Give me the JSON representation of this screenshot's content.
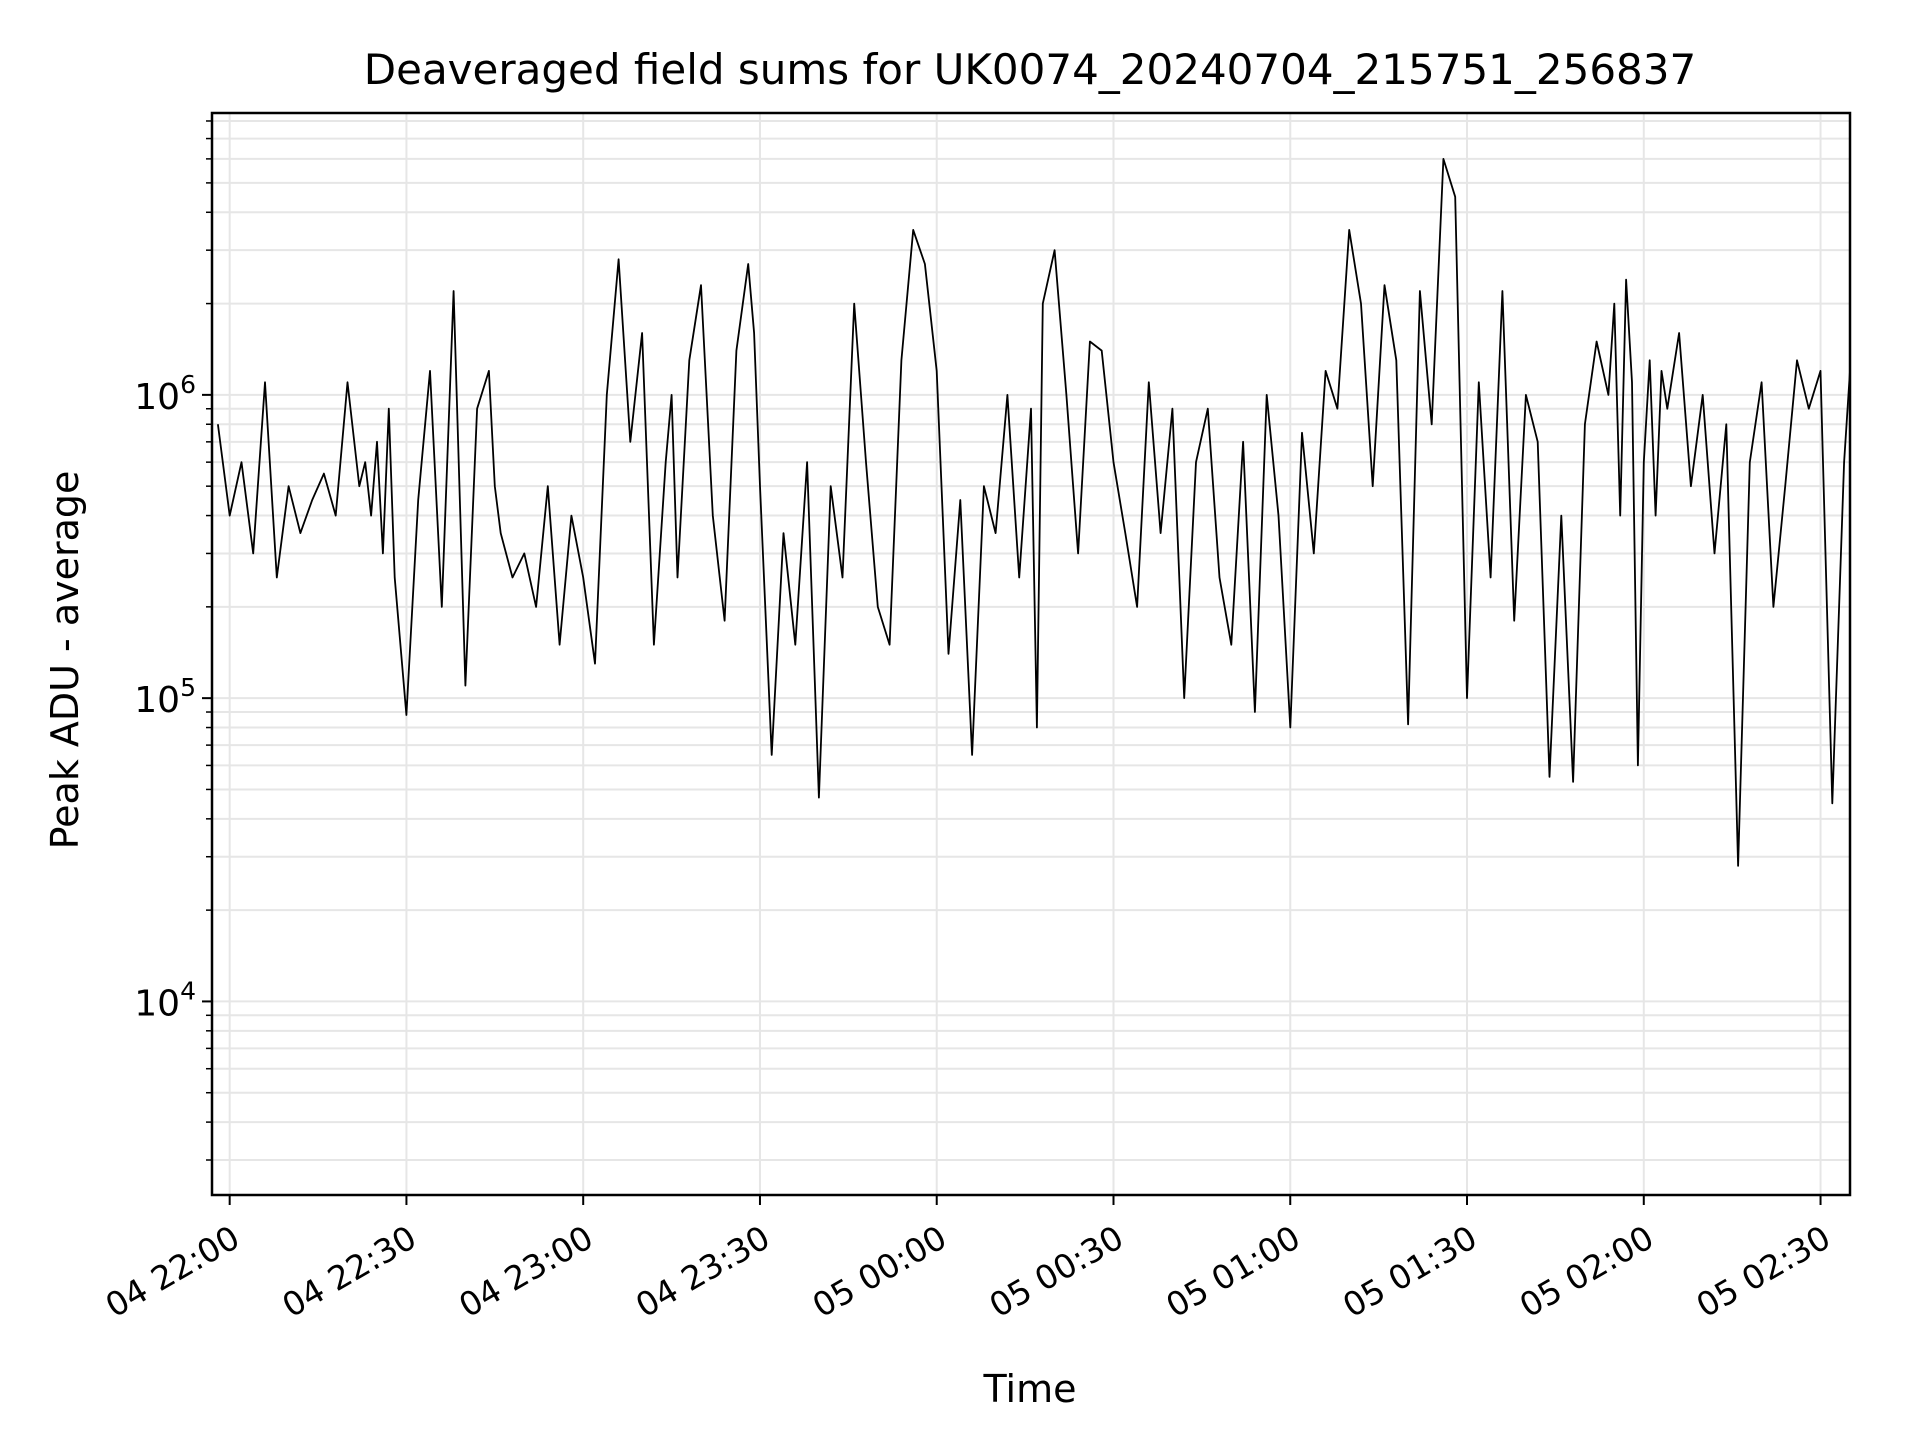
{
  "chart_data": {
    "type": "line",
    "title": "Deaveraged field sums for UK0074_20240704_215751_256837",
    "xlabel": "Time",
    "ylabel": "Peak ADU - average",
    "yscale": "log",
    "ylim": [
      2300,
      8500000
    ],
    "xlim": [
      "2024-07-04 21:57:00",
      "2024-07-05 02:35:00"
    ],
    "grid": true,
    "legend": "none",
    "line_color": "#000000",
    "grid_color": "#e6e6e6",
    "x_ticks": [
      {
        "time": "2024-07-04 22:00:00",
        "label": "04 22:00"
      },
      {
        "time": "2024-07-04 22:30:00",
        "label": "04 22:30"
      },
      {
        "time": "2024-07-04 23:00:00",
        "label": "04 23:00"
      },
      {
        "time": "2024-07-04 23:30:00",
        "label": "04 23:30"
      },
      {
        "time": "2024-07-05 00:00:00",
        "label": "05 00:00"
      },
      {
        "time": "2024-07-05 00:30:00",
        "label": "05 00:30"
      },
      {
        "time": "2024-07-05 01:00:00",
        "label": "05 01:00"
      },
      {
        "time": "2024-07-05 01:30:00",
        "label": "05 01:30"
      },
      {
        "time": "2024-07-05 02:00:00",
        "label": "05 02:00"
      },
      {
        "time": "2024-07-05 02:30:00",
        "label": "05 02:30"
      }
    ],
    "y_ticks": [
      {
        "value": 10000,
        "base": "10",
        "exp": "4"
      },
      {
        "value": 100000,
        "base": "10",
        "exp": "5"
      },
      {
        "value": 1000000,
        "base": "10",
        "exp": "6"
      }
    ],
    "series": [
      {
        "x": [
          "2024-07-04 21:58:00",
          "2024-07-04 22:00:00",
          "2024-07-04 22:02:00",
          "2024-07-04 22:04:00",
          "2024-07-04 22:06:00",
          "2024-07-04 22:08:00",
          "2024-07-04 22:10:00",
          "2024-07-04 22:12:00",
          "2024-07-04 22:14:00",
          "2024-07-04 22:16:00",
          "2024-07-04 22:18:00",
          "2024-07-04 22:20:00",
          "2024-07-04 22:22:00",
          "2024-07-04 22:23:00",
          "2024-07-04 22:24:00",
          "2024-07-04 22:25:00",
          "2024-07-04 22:26:00",
          "2024-07-04 22:27:00",
          "2024-07-04 22:28:00",
          "2024-07-04 22:30:00",
          "2024-07-04 22:32:00",
          "2024-07-04 22:34:00",
          "2024-07-04 22:36:00",
          "2024-07-04 22:38:00",
          "2024-07-04 22:40:00",
          "2024-07-04 22:42:00",
          "2024-07-04 22:44:00",
          "2024-07-04 22:45:00",
          "2024-07-04 22:46:00",
          "2024-07-04 22:48:00",
          "2024-07-04 22:50:00",
          "2024-07-04 22:52:00",
          "2024-07-04 22:54:00",
          "2024-07-04 22:56:00",
          "2024-07-04 22:58:00",
          "2024-07-04 23:00:00",
          "2024-07-04 23:02:00",
          "2024-07-04 23:04:00",
          "2024-07-04 23:06:00",
          "2024-07-04 23:08:00",
          "2024-07-04 23:10:00",
          "2024-07-04 23:12:00",
          "2024-07-04 23:14:00",
          "2024-07-04 23:15:00",
          "2024-07-04 23:16:00",
          "2024-07-04 23:18:00",
          "2024-07-04 23:20:00",
          "2024-07-04 23:22:00",
          "2024-07-04 23:24:00",
          "2024-07-04 23:26:00",
          "2024-07-04 23:28:00",
          "2024-07-04 23:29:00",
          "2024-07-04 23:30:00",
          "2024-07-04 23:32:00",
          "2024-07-04 23:34:00",
          "2024-07-04 23:36:00",
          "2024-07-04 23:38:00",
          "2024-07-04 23:40:00",
          "2024-07-04 23:42:00",
          "2024-07-04 23:44:00",
          "2024-07-04 23:46:00",
          "2024-07-04 23:48:00",
          "2024-07-04 23:50:00",
          "2024-07-04 23:52:00",
          "2024-07-04 23:54:00",
          "2024-07-04 23:56:00",
          "2024-07-04 23:58:00",
          "2024-07-05 00:00:00",
          "2024-07-05 00:02:00",
          "2024-07-05 00:04:00",
          "2024-07-05 00:06:00",
          "2024-07-05 00:08:00",
          "2024-07-05 00:10:00",
          "2024-07-05 00:12:00",
          "2024-07-05 00:14:00",
          "2024-07-05 00:16:00",
          "2024-07-05 00:17:00",
          "2024-07-05 00:18:00",
          "2024-07-05 00:20:00",
          "2024-07-05 00:22:00",
          "2024-07-05 00:24:00",
          "2024-07-05 00:26:00",
          "2024-07-05 00:28:00",
          "2024-07-05 00:30:00",
          "2024-07-05 00:32:00",
          "2024-07-05 00:34:00",
          "2024-07-05 00:36:00",
          "2024-07-05 00:38:00",
          "2024-07-05 00:40:00",
          "2024-07-05 00:42:00",
          "2024-07-05 00:44:00",
          "2024-07-05 00:46:00",
          "2024-07-05 00:48:00",
          "2024-07-05 00:50:00",
          "2024-07-05 00:52:00",
          "2024-07-05 00:54:00",
          "2024-07-05 00:56:00",
          "2024-07-05 00:58:00",
          "2024-07-05 01:00:00",
          "2024-07-05 01:02:00",
          "2024-07-05 01:04:00",
          "2024-07-05 01:06:00",
          "2024-07-05 01:08:00",
          "2024-07-05 01:10:00",
          "2024-07-05 01:12:00",
          "2024-07-05 01:14:00",
          "2024-07-05 01:16:00",
          "2024-07-05 01:18:00",
          "2024-07-05 01:20:00",
          "2024-07-05 01:22:00",
          "2024-07-05 01:24:00",
          "2024-07-05 01:26:00",
          "2024-07-05 01:28:00",
          "2024-07-05 01:30:00",
          "2024-07-05 01:32:00",
          "2024-07-05 01:34:00",
          "2024-07-05 01:36:00",
          "2024-07-05 01:38:00",
          "2024-07-05 01:40:00",
          "2024-07-05 01:42:00",
          "2024-07-05 01:44:00",
          "2024-07-05 01:46:00",
          "2024-07-05 01:48:00",
          "2024-07-05 01:50:00",
          "2024-07-05 01:52:00",
          "2024-07-05 01:54:00",
          "2024-07-05 01:55:00",
          "2024-07-05 01:56:00",
          "2024-07-05 01:57:00",
          "2024-07-05 01:58:00",
          "2024-07-05 01:59:00",
          "2024-07-05 02:00:00",
          "2024-07-05 02:01:00",
          "2024-07-05 02:02:00",
          "2024-07-05 02:03:00",
          "2024-07-05 02:04:00",
          "2024-07-05 02:06:00",
          "2024-07-05 02:08:00",
          "2024-07-05 02:10:00",
          "2024-07-05 02:12:00",
          "2024-07-05 02:14:00",
          "2024-07-05 02:16:00",
          "2024-07-05 02:18:00",
          "2024-07-05 02:20:00",
          "2024-07-05 02:22:00",
          "2024-07-05 02:24:00",
          "2024-07-05 02:26:00",
          "2024-07-05 02:28:00",
          "2024-07-05 02:30:00",
          "2024-07-05 02:32:00",
          "2024-07-05 02:34:00",
          "2024-07-05 02:35:00"
        ],
        "values": [
          800000,
          400000,
          600000,
          300000,
          1100000,
          250000,
          500000,
          350000,
          450000,
          550000,
          400000,
          1100000,
          500000,
          600000,
          400000,
          700000,
          300000,
          900000,
          250000,
          88000,
          450000,
          1200000,
          200000,
          2200000,
          110000,
          900000,
          1200000,
          500000,
          350000,
          250000,
          300000,
          200000,
          500000,
          150000,
          400000,
          250000,
          130000,
          1000000,
          2800000,
          700000,
          1600000,
          150000,
          600000,
          1000000,
          250000,
          1300000,
          2300000,
          400000,
          180000,
          1400000,
          2700000,
          1600000,
          500000,
          65000,
          350000,
          150000,
          600000,
          47000,
          500000,
          250000,
          2000000,
          600000,
          200000,
          150000,
          1300000,
          3500000,
          2700000,
          1200000,
          140000,
          450000,
          65000,
          500000,
          350000,
          1000000,
          250000,
          900000,
          80000,
          2000000,
          3000000,
          1000000,
          300000,
          1500000,
          1400000,
          600000,
          350000,
          200000,
          1100000,
          350000,
          900000,
          100000,
          600000,
          900000,
          250000,
          150000,
          700000,
          90000,
          1000000,
          400000,
          80000,
          750000,
          300000,
          1200000,
          900000,
          3500000,
          2000000,
          500000,
          2300000,
          1300000,
          82000,
          2200000,
          800000,
          6000000,
          4500000,
          100000,
          1100000,
          250000,
          2200000,
          180000,
          1000000,
          700000,
          55000,
          400000,
          53000,
          800000,
          1500000,
          1000000,
          2000000,
          400000,
          2400000,
          1100000,
          60000,
          600000,
          1300000,
          400000,
          1200000,
          900000,
          1600000,
          500000,
          1000000,
          300000,
          800000,
          28000,
          600000,
          1100000,
          200000,
          500000,
          1300000,
          900000,
          1200000,
          45000,
          600000,
          1200000
        ]
      }
    ]
  }
}
